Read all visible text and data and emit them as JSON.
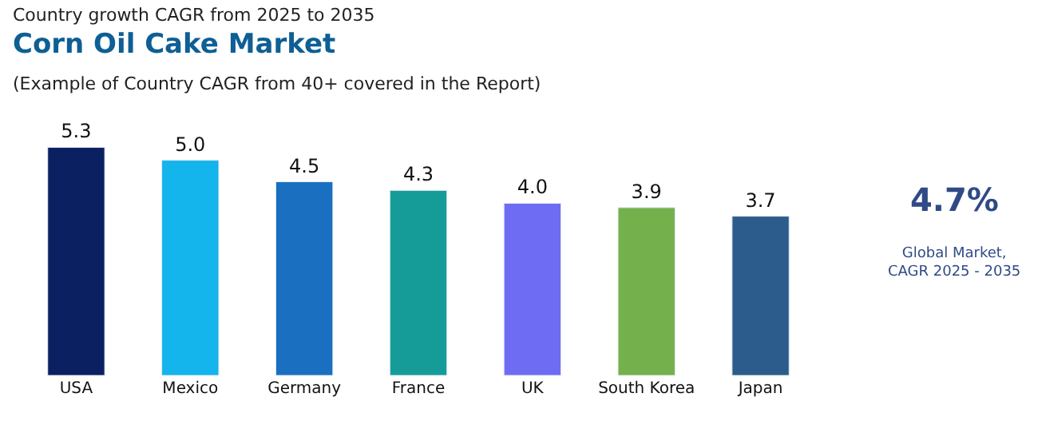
{
  "chart_data": {
    "type": "bar",
    "title": "Corn Oil Cake Market",
    "subtitle": "Country growth CAGR from 2025 to 2035",
    "annotations": [
      "(Example of Country CAGR from 40+ covered in the Report)",
      "4.7%",
      "Global Market,\nCAGR 2025 - 2035"
    ],
    "categories": [
      "USA",
      "Mexico",
      "Germany",
      "France",
      "UK",
      "South Korea",
      "Japan"
    ],
    "values": [
      5.3,
      5.0,
      4.5,
      4.3,
      4.0,
      3.9,
      3.7
    ],
    "value_labels": [
      "5.3",
      "5.0",
      "4.5",
      "4.3",
      "4.0",
      "3.9",
      "3.7"
    ],
    "colors": [
      "#0b2060",
      "#14b4ec",
      "#1b6fc0",
      "#169c98",
      "#6f6cf4",
      "#74b04c",
      "#2c5c8c"
    ],
    "tick_labels": "x"
  }
}
